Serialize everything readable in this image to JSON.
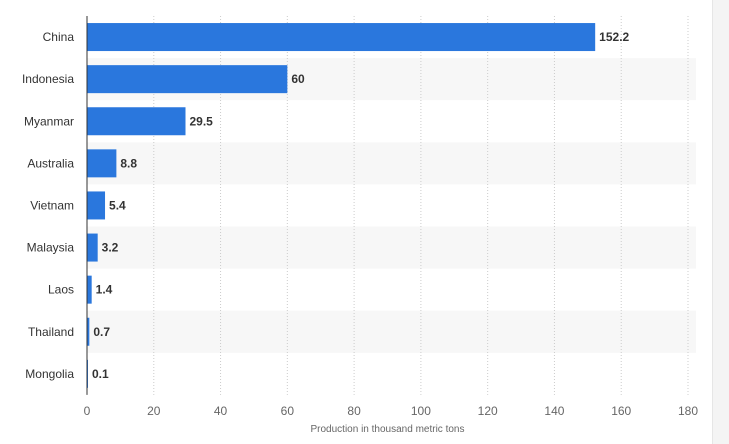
{
  "chart_data": {
    "type": "bar",
    "orientation": "horizontal",
    "categories": [
      "China",
      "Indonesia",
      "Myanmar",
      "Australia",
      "Vietnam",
      "Malaysia",
      "Laos",
      "Thailand",
      "Mongolia"
    ],
    "values": [
      152.2,
      60,
      29.5,
      8.8,
      5.4,
      3.2,
      1.4,
      0.7,
      0.1
    ],
    "value_labels": [
      "152.2",
      "60",
      "29.5",
      "8.8",
      "5.4",
      "3.2",
      "1.4",
      "0.7",
      "0.1"
    ],
    "xlabel": "Production in thousand metric tons",
    "ylabel": "",
    "xlim": [
      0,
      180
    ],
    "xticks": [
      0,
      20,
      40,
      60,
      80,
      100,
      120,
      140,
      160,
      180
    ],
    "grid": "vertical dashed",
    "legend": "none",
    "bar_color": "#2a77dd",
    "band_color": "#f7f7f7"
  }
}
